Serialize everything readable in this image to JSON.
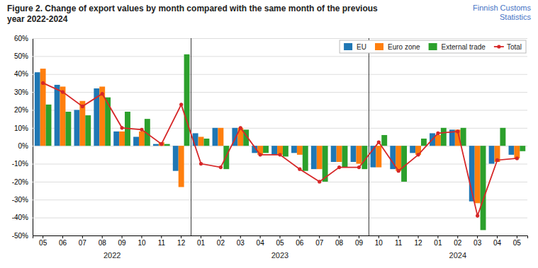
{
  "chart_data": {
    "type": "bar",
    "title": "Figure 2. Change of export values by month compared with the same month of the previous\nyear 2022-2024",
    "subtitle": "Finnish Customs\nStatistics",
    "categories": [
      "05",
      "06",
      "07",
      "08",
      "09",
      "10",
      "11",
      "12",
      "01",
      "02",
      "03",
      "04",
      "05",
      "06",
      "07",
      "08",
      "09",
      "10",
      "11",
      "12",
      "01",
      "02",
      "03",
      "04",
      "05"
    ],
    "series": [
      {
        "name": "EU",
        "type": "bar",
        "values": [
          41,
          34,
          20,
          32,
          8,
          5,
          1,
          -14,
          7,
          10,
          10,
          -4,
          -5,
          -4,
          -13,
          -9,
          -9,
          -12,
          -13,
          -4,
          7,
          9,
          -31,
          -10,
          -5
        ]
      },
      {
        "name": "Euro zone",
        "type": "bar",
        "values": [
          43,
          33,
          25,
          33,
          8,
          8,
          2,
          -23,
          5,
          10,
          10,
          -5,
          -5,
          -5,
          -13,
          -9,
          -10,
          -12,
          -14,
          -5,
          6,
          9,
          -32,
          -9,
          -7
        ]
      },
      {
        "name": "External trade",
        "type": "bar",
        "values": [
          23,
          19,
          17,
          27,
          19,
          15,
          1,
          51,
          4,
          -13,
          9,
          -4,
          -6,
          -14,
          -20,
          -12,
          -13,
          6,
          -20,
          4,
          10,
          10,
          -47,
          10,
          -3
        ]
      },
      {
        "name": "Total",
        "type": "line",
        "marker": "circle",
        "values": [
          35,
          30,
          22,
          29,
          10,
          9,
          1,
          23,
          -10,
          -12,
          10,
          -5,
          -5,
          -13,
          -20,
          -12,
          -12,
          2,
          -14,
          -5,
          7,
          8,
          -39,
          -8,
          -7
        ]
      }
    ],
    "ylim": [
      -50,
      60
    ],
    "yticks": [
      {
        "value": -50,
        "label": "-50%"
      },
      {
        "value": -40,
        "label": "-40%"
      },
      {
        "value": -30,
        "label": "-30%"
      },
      {
        "value": -20,
        "label": "-20%"
      },
      {
        "value": -10,
        "label": "-10%"
      },
      {
        "value": 0,
        "label": "0%"
      },
      {
        "value": 10,
        "label": "10%"
      },
      {
        "value": 20,
        "label": "20%"
      },
      {
        "value": 30,
        "label": "30%"
      },
      {
        "value": 40,
        "label": "40%"
      },
      {
        "value": 50,
        "label": "50%"
      },
      {
        "value": 60,
        "label": "60%"
      }
    ],
    "grid": true,
    "legend": "upper right",
    "year_separators": [
      7.5,
      16.5
    ],
    "annotations": [
      {
        "text": "2022",
        "x": 3.5
      },
      {
        "text": "2023",
        "x": 12.0
      },
      {
        "text": "2024",
        "x": 21.0
      }
    ]
  }
}
